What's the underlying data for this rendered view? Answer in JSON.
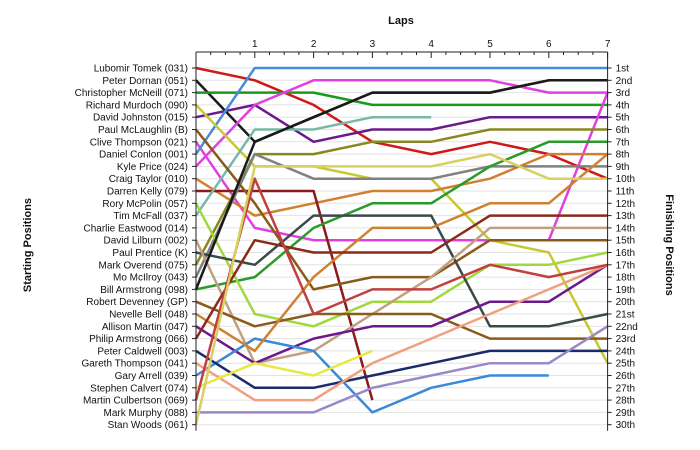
{
  "chart_data": {
    "type": "line",
    "title": "",
    "xlabel": "Laps",
    "ylabel_left": "Starting Positions",
    "ylabel_right": "Finishing Positions",
    "laps": [
      0,
      1,
      2,
      3,
      4,
      5,
      6,
      7
    ],
    "lap_tick_labels": [
      "1",
      "2",
      "3",
      "4",
      "5",
      "6",
      "7"
    ],
    "ylim": [
      1,
      30
    ],
    "starting_order": [
      "Lubomir Tomek (031)",
      "Peter Dornan (051)",
      "Christopher McNeill (071)",
      "Richard Murdoch (090)",
      "David Johnston (015)",
      "Paul McLaughlin (B)",
      "Clive Thompson (021)",
      "Daniel Conlon (001)",
      "Kyle Price (024)",
      "Craig Taylor (010)",
      "Darren Kelly (079)",
      "Rory McPolin (057)",
      "Tim McFall (037)",
      "Charlie Eastwood (014)",
      "David Lilburn (002)",
      "Paul Prentice (K)",
      "Mark Overend (075)",
      "Mo McIlroy (043)",
      "Bill Armstrong (098)",
      "Robert Devenney (GP)",
      "Nevelle Bell (048)",
      "Allison Martin (047)",
      "Philip Armstrong (066)",
      "Peter Caldwell (003)",
      "Gareth Thompson (041)",
      "Gary Arrell (039)",
      "Stephen Calvert (074)",
      "Martin Culbertson (069)",
      "Mark Murphy (088)",
      "Stan Woods (061)"
    ],
    "finishing_labels": [
      "1st",
      "2nd",
      "3rd",
      "4th",
      "5th",
      "6th",
      "7th",
      "8th",
      "9th",
      "10th",
      "11th",
      "12th",
      "13th",
      "14th",
      "15th",
      "16th",
      "17th",
      "18th",
      "19th",
      "20th",
      "21st",
      "22nd",
      "23rd",
      "24th",
      "25th",
      "26th",
      "27th",
      "28th",
      "29th",
      "30th"
    ],
    "series": [
      {
        "color": "#d01818",
        "positions": [
          1,
          2,
          4,
          7,
          8,
          7,
          8,
          10
        ]
      },
      {
        "color": "#1a1a1a",
        "positions": [
          2,
          7,
          5,
          3,
          3,
          3,
          2,
          2
        ]
      },
      {
        "color": "#1a9a1a",
        "positions": [
          3,
          3,
          3,
          4,
          4,
          4,
          4,
          4
        ]
      },
      {
        "color": "#6a1a8a",
        "positions": [
          5,
          4,
          7,
          6,
          6,
          5,
          5,
          5
        ]
      },
      {
        "color": "#e040e0",
        "positions": [
          7,
          14,
          15,
          15,
          15,
          15,
          15,
          3
        ]
      },
      {
        "color": "#4a8ad8",
        "positions": [
          8,
          1,
          1,
          1,
          1,
          1,
          1,
          1
        ]
      },
      {
        "color": "#e040e0",
        "positions": [
          9,
          4,
          2,
          2,
          2,
          2,
          3,
          3
        ]
      },
      {
        "color": "#c8c832",
        "positions": [
          4,
          9,
          9,
          10,
          10,
          15,
          16,
          25
        ]
      },
      {
        "color": "#d08030",
        "positions": [
          10,
          13,
          12,
          11,
          11,
          10,
          8,
          8
        ]
      },
      {
        "color": "#8b1a1a",
        "positions": [
          11,
          11,
          11,
          28
        ]
      },
      {
        "color": "#78b8a8",
        "positions": [
          13,
          6,
          6,
          5,
          5
        ]
      },
      {
        "color": "#888822",
        "positions": [
          17,
          8,
          8,
          7,
          7,
          6,
          6,
          6
        ]
      },
      {
        "color": "#808080",
        "positions": [
          18,
          8,
          10,
          10,
          10,
          9,
          9,
          9
        ]
      },
      {
        "color": "#2a9a2a",
        "positions": [
          19,
          18,
          14,
          12,
          12,
          9,
          7,
          7
        ]
      },
      {
        "color": "#a0d840",
        "positions": [
          12,
          21,
          22,
          20,
          20,
          17,
          17,
          16
        ]
      },
      {
        "color": "#8a5a1a",
        "positions": [
          6,
          12,
          19,
          18,
          18,
          15,
          15,
          15
        ]
      },
      {
        "color": "#3a4a4a",
        "positions": [
          16,
          17,
          13,
          13,
          13,
          22,
          22,
          21
        ]
      },
      {
        "color": "#c0a080",
        "positions": [
          15,
          25,
          24,
          21,
          18,
          14,
          14,
          14
        ]
      },
      {
        "color": "#8a5a1a",
        "positions": [
          20,
          22,
          21,
          21,
          21,
          23,
          23,
          23
        ]
      },
      {
        "color": "#6a1a8a",
        "positions": [
          22,
          25,
          23,
          22,
          22,
          20,
          20,
          17
        ]
      },
      {
        "color": "#3a8ad8",
        "positions": [
          26,
          23,
          24,
          29,
          27,
          26,
          26
        ]
      },
      {
        "color": "#1a2a6a",
        "positions": [
          24,
          27,
          27,
          26,
          25,
          24,
          24,
          24
        ]
      },
      {
        "color": "#d08030",
        "positions": [
          21,
          24,
          18,
          14,
          14,
          12,
          12,
          8
        ]
      },
      {
        "color": "#8b2a1a",
        "positions": [
          23,
          15,
          16,
          16,
          16,
          13,
          13,
          13
        ]
      },
      {
        "color": "#f0a080",
        "positions": [
          25,
          28,
          28,
          25,
          23,
          21,
          19,
          17
        ]
      },
      {
        "color": "#e8e840",
        "positions": [
          27,
          25,
          26,
          24
        ]
      },
      {
        "color": "#c04040",
        "positions": [
          28,
          10,
          21,
          19,
          19,
          17,
          18,
          17
        ]
      },
      {
        "color": "#9a88c8",
        "positions": [
          29,
          29,
          29,
          27,
          26,
          25,
          25,
          22
        ]
      },
      {
        "color": "#d8d060",
        "positions": [
          30,
          9,
          9,
          9,
          9,
          8,
          10,
          10
        ]
      },
      {
        "color": "#1a1a1a",
        "positions": [
          19,
          7,
          5,
          3,
          3,
          3,
          2,
          2
        ]
      }
    ]
  }
}
